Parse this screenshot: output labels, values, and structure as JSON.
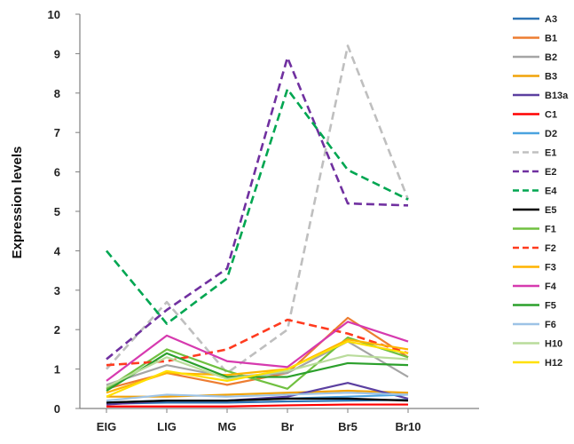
{
  "chart_data": {
    "type": "line",
    "title": "",
    "xlabel": "",
    "ylabel": "Expression levels",
    "ylim": [
      0,
      10
    ],
    "y_ticks": [
      "0",
      "1",
      "2",
      "3",
      "4",
      "5",
      "6",
      "7",
      "8",
      "9",
      "10"
    ],
    "grid": false,
    "legend_position": "right",
    "categories": [
      "EIG",
      "LIG",
      "MG",
      "Br",
      "Br5",
      "Br10"
    ],
    "series": [
      {
        "name": "A3",
        "color": "#2e75b6",
        "dash": false,
        "values": [
          0.12,
          0.15,
          0.15,
          0.18,
          0.2,
          0.22
        ]
      },
      {
        "name": "B1",
        "color": "#ed7d31",
        "dash": false,
        "values": [
          0.5,
          0.9,
          0.6,
          0.9,
          2.3,
          1.3
        ]
      },
      {
        "name": "B2",
        "color": "#a5a5a5",
        "dash": false,
        "values": [
          0.6,
          1.1,
          0.8,
          0.9,
          1.7,
          0.8
        ]
      },
      {
        "name": "B3",
        "color": "#f0a30a",
        "dash": false,
        "values": [
          0.3,
          0.3,
          0.35,
          0.4,
          0.45,
          0.4
        ]
      },
      {
        "name": "B13a",
        "color": "#5b3fa0",
        "dash": false,
        "values": [
          0.1,
          0.2,
          0.2,
          0.3,
          0.65,
          0.25
        ]
      },
      {
        "name": "C1",
        "color": "#ff0000",
        "dash": false,
        "values": [
          0.05,
          0.05,
          0.05,
          0.08,
          0.1,
          0.1
        ]
      },
      {
        "name": "D2",
        "color": "#4aa3df",
        "dash": false,
        "values": [
          0.15,
          0.2,
          0.2,
          0.25,
          0.3,
          0.35
        ]
      },
      {
        "name": "E1",
        "color": "#bfbfbf",
        "dash": true,
        "values": [
          1.0,
          2.7,
          0.9,
          2.0,
          9.2,
          5.3
        ]
      },
      {
        "name": "E2",
        "color": "#7030a0",
        "dash": true,
        "values": [
          1.25,
          2.5,
          3.55,
          8.9,
          5.2,
          5.15
        ]
      },
      {
        "name": "E4",
        "color": "#00a651",
        "dash": true,
        "values": [
          4.0,
          2.15,
          3.3,
          8.1,
          6.05,
          5.3
        ]
      },
      {
        "name": "E5",
        "color": "#000000",
        "dash": false,
        "values": [
          0.15,
          0.2,
          0.2,
          0.25,
          0.25,
          0.2
        ]
      },
      {
        "name": "F1",
        "color": "#70c040",
        "dash": false,
        "values": [
          0.5,
          1.5,
          0.95,
          0.5,
          1.8,
          1.3
        ]
      },
      {
        "name": "F2",
        "color": "#ff3b1f",
        "dash": true,
        "values": [
          1.1,
          1.2,
          1.5,
          2.25,
          1.9,
          1.4
        ]
      },
      {
        "name": "F3",
        "color": "#ffb300",
        "dash": false,
        "values": [
          0.4,
          0.9,
          0.85,
          1.0,
          1.75,
          1.5
        ]
      },
      {
        "name": "F4",
        "color": "#d63aaf",
        "dash": false,
        "values": [
          0.7,
          1.85,
          1.2,
          1.05,
          2.2,
          1.7
        ]
      },
      {
        "name": "F5",
        "color": "#2ca02c",
        "dash": false,
        "values": [
          0.45,
          1.4,
          0.8,
          0.8,
          1.15,
          1.1
        ]
      },
      {
        "name": "F6",
        "color": "#9dc3e6",
        "dash": false,
        "values": [
          0.2,
          0.35,
          0.3,
          0.35,
          0.4,
          0.35
        ]
      },
      {
        "name": "H10",
        "color": "#b9dc9b",
        "dash": false,
        "values": [
          0.55,
          1.3,
          0.75,
          0.95,
          1.35,
          1.25
        ]
      },
      {
        "name": "H12",
        "color": "#ffe000",
        "dash": false,
        "values": [
          0.3,
          0.95,
          0.7,
          1.0,
          1.7,
          1.4
        ]
      }
    ]
  }
}
